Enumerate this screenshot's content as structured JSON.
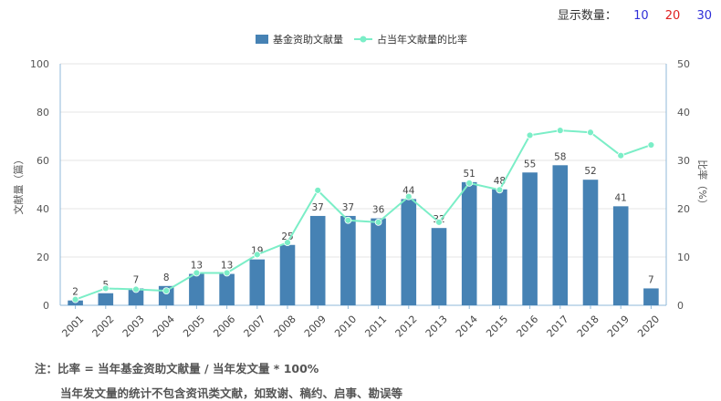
{
  "display_count": {
    "label": "显示数量：",
    "options": [
      {
        "value": "10",
        "color": "#2e2ed8"
      },
      {
        "value": "20",
        "color": "#e02020"
      },
      {
        "value": "30",
        "color": "#2e2ed8"
      }
    ]
  },
  "notes": {
    "line1": "注：比率 = 当年基金资助文献量 / 当年发文量 * 100%",
    "line2": "当年发文量的统计不包含资讯类文献，如致谢、稿约、启事、勘误等"
  },
  "chart_data": {
    "type": "bar",
    "categories": [
      "2001",
      "2002",
      "2003",
      "2004",
      "2005",
      "2006",
      "2007",
      "2008",
      "2009",
      "2010",
      "2011",
      "2012",
      "2013",
      "2014",
      "2015",
      "2016",
      "2017",
      "2018",
      "2019",
      "2020"
    ],
    "series": [
      {
        "name": "基金资助文献量",
        "type": "bar",
        "axis": "left",
        "color": "#4682b4",
        "values": [
          2,
          5,
          7,
          8,
          13,
          13,
          19,
          25,
          37,
          37,
          36,
          44,
          32,
          51,
          48,
          55,
          58,
          52,
          41,
          7
        ]
      },
      {
        "name": "占当年文献量的比率",
        "type": "line",
        "axis": "right",
        "color": "#7beec7",
        "values": [
          1.2,
          3.5,
          3.3,
          3.0,
          6.7,
          6.7,
          10.5,
          13.0,
          23.8,
          17.6,
          17.2,
          22.5,
          17.2,
          25.3,
          23.9,
          35.2,
          36.2,
          35.8,
          31.0,
          33.2
        ]
      }
    ],
    "ylabel_left": "文献量（篇）",
    "ylabel_right": "比率（%）",
    "ylim_left": [
      0,
      100
    ],
    "ylim_right": [
      0,
      50
    ],
    "yticks_left": [
      0,
      20,
      40,
      60,
      80,
      100
    ],
    "yticks_right": [
      0,
      10,
      20,
      30,
      40,
      50
    ],
    "legend_position": "top-center",
    "grid": true
  }
}
